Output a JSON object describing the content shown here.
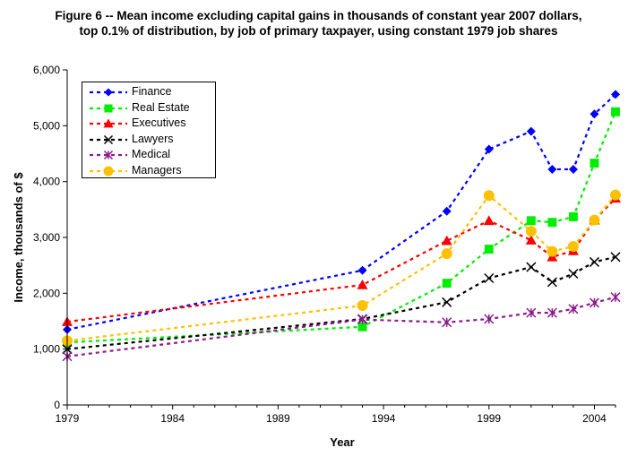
{
  "chart_data": {
    "type": "line",
    "title_line1": "Figure 6 -- Mean income excluding capital gains in thousands of constant year 2007 dollars,",
    "title_line2": "top 0.1% of distribution, by job of primary taxpayer, using constant 1979 job shares",
    "xlabel": "Year",
    "ylabel": "Income, thousands of $",
    "xlim": [
      1979,
      2005
    ],
    "ylim": [
      0,
      6000
    ],
    "xticks": [
      1979,
      1984,
      1989,
      1994,
      1999,
      2004
    ],
    "xtick_labels": [
      "1979",
      "1984",
      "1989",
      "1994",
      "1999",
      "2004"
    ],
    "yticks": [
      0,
      1000,
      2000,
      3000,
      4000,
      5000,
      6000
    ],
    "ytick_labels": [
      "0",
      "1,000",
      "2,000",
      "3,000",
      "4,000",
      "5,000",
      "6,000"
    ],
    "x": [
      1979,
      1993,
      1997,
      1999,
      2001,
      2002,
      2003,
      2004,
      2005
    ],
    "series": [
      {
        "name": "Finance",
        "color": "#0000ff",
        "marker": "diamond",
        "values": [
          1350,
          2410,
          3470,
          4580,
          4900,
          4220,
          4220,
          5210,
          5560
        ]
      },
      {
        "name": "Real Estate",
        "color": "#00ee00",
        "marker": "square",
        "values": [
          1120,
          1400,
          2180,
          2790,
          3300,
          3270,
          3370,
          4330,
          5250
        ]
      },
      {
        "name": "Executives",
        "color": "#ff0000",
        "marker": "triangle",
        "values": [
          1490,
          2150,
          2940,
          3300,
          2950,
          2650,
          2760,
          3310,
          3700
        ]
      },
      {
        "name": "Lawyers",
        "color": "#000000",
        "marker": "x",
        "values": [
          1000,
          1540,
          1840,
          2270,
          2470,
          2200,
          2350,
          2560,
          2650
        ]
      },
      {
        "name": "Medical",
        "color": "#8b1a8b",
        "marker": "asterisk",
        "values": [
          870,
          1530,
          1480,
          1540,
          1650,
          1650,
          1720,
          1830,
          1930
        ]
      },
      {
        "name": "Managers",
        "color": "#ffc000",
        "marker": "circle",
        "values": [
          1150,
          1780,
          2710,
          3750,
          3110,
          2750,
          2840,
          3310,
          3760
        ]
      }
    ],
    "legend_position": "top-left"
  }
}
